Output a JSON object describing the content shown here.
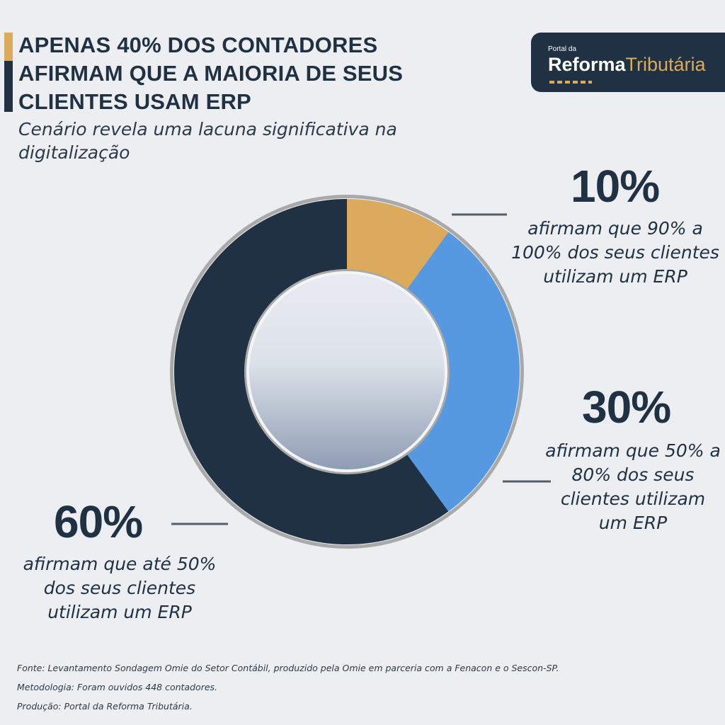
{
  "title_lines": [
    "APENAS 40% DOS CONTADORES",
    "AFIRMAM QUE A MAIORIA DE SEUS",
    "CLIENTES USAM ERP"
  ],
  "subtitle": "Cenário revela uma lacuna significativa na digitalização",
  "logo": {
    "small": "Portal da",
    "bold": "Reforma",
    "accent": "Tributária"
  },
  "colors": {
    "navy": "#1f3142",
    "gold": "#dcaa5c",
    "blue": "#5699e0",
    "background": "#eceef1",
    "ring": "#a9a9a9"
  },
  "chart_data": {
    "type": "pie",
    "style": "donut",
    "categories": [
      "afirmam que 90% a 100% dos seus clientes utilizam um ERP",
      "afirmam que 50% a 80% dos seus clientes utilizam um ERP",
      "afirmam que até 50% dos seus clientes utilizam um ERP"
    ],
    "values": [
      10,
      30,
      60
    ],
    "labels": [
      "10%",
      "30%",
      "60%"
    ],
    "colors": [
      "#dcaa5c",
      "#5699e0",
      "#1f3142"
    ],
    "title": "APENAS 40% DOS CONTADORES AFIRMAM QUE A MAIORIA DE SEUS CLIENTES USAM ERP",
    "subtitle": "Cenário revela uma lacuna significativa na digitalização"
  },
  "footer": {
    "source": "Fonte: Levantamento Sondagem Omie do Setor Contábil, produzido pela Omie em parceria com a Fenacon e o Sescon-SP.",
    "methodology": "Metodologia: Foram ouvidos 448 contadores.",
    "production": "Produção: Portal da Reforma Tributária."
  }
}
